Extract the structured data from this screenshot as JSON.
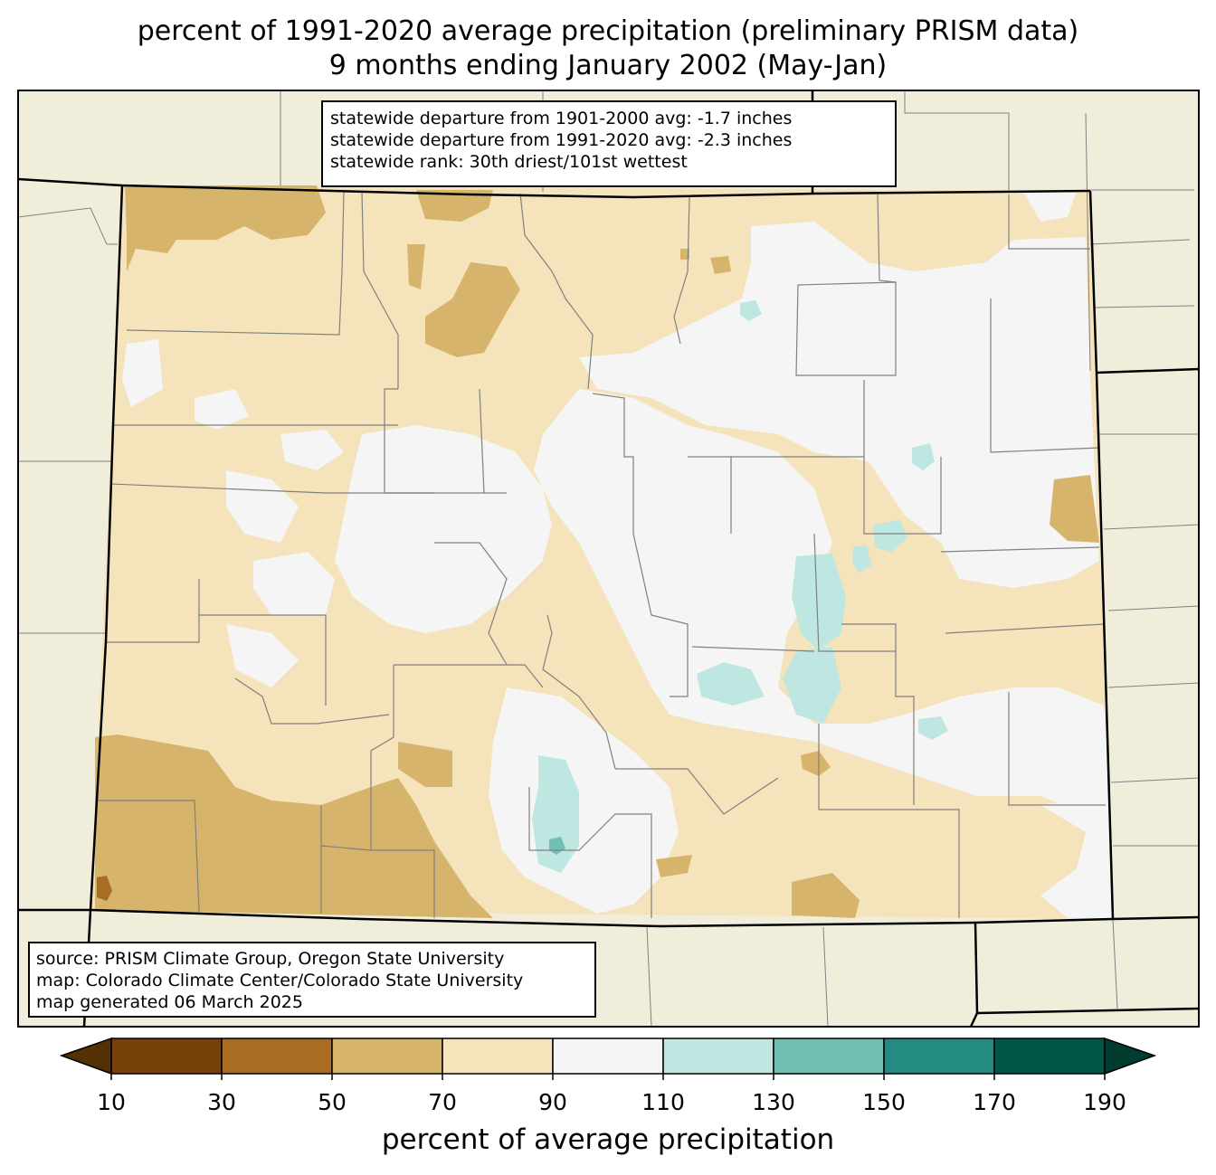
{
  "title": {
    "line1": "percent of 1991-2020 average precipitation (preliminary PRISM data)",
    "line2": "9 months ending January 2002 (May-Jan)"
  },
  "stats": {
    "line1": "statewide departure from 1901-2000 avg: -1.7 inches",
    "line2": "statewide departure from 1991-2020 avg: -2.3 inches",
    "line3": "statewide rank: 30th driest/101st wettest"
  },
  "source": {
    "line1": "source: PRISM Climate Group, Oregon State University",
    "line2": "map: Colorado Climate Center/Colorado State University",
    "line3": "map generated 06 March 2025"
  },
  "colorbar": {
    "label": "percent of average precipitation",
    "ticks": [
      "10",
      "30",
      "50",
      "70",
      "90",
      "110",
      "130",
      "150",
      "170",
      "190"
    ],
    "colors": {
      "below10": "#543005",
      "c10_30": "#744108",
      "c30_50": "#a86d22",
      "c50_70": "#d7b46c",
      "c70_90": "#f4e3bb",
      "c90_110": "#f4f5f4",
      "c110_130": "#bde7e0",
      "c130_150": "#6fc0b2",
      "c150_170": "#238b82",
      "c170_190": "#01564a",
      "above190": "#003c30"
    }
  },
  "map_colors": {
    "background": "#f0eedb",
    "county_lines": "#808080",
    "state_lines": "#000000"
  }
}
